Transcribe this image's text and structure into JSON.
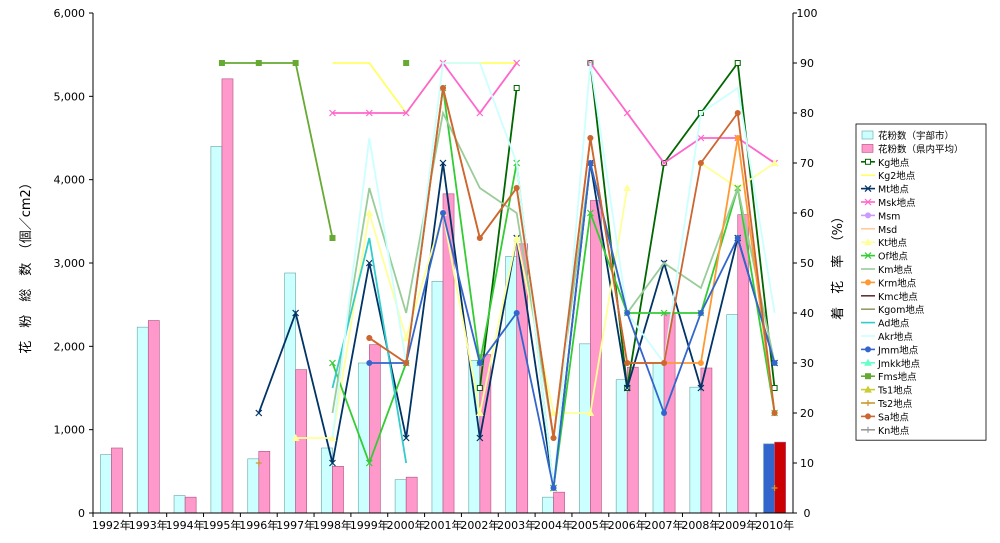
{
  "chart_data": {
    "type": "bar",
    "categories": [
      "1992年",
      "1993年",
      "1994年",
      "1995年",
      "1996年",
      "1997年",
      "1998年",
      "1999年",
      "2000年",
      "2001年",
      "2002年",
      "2003年",
      "2004年",
      "2005年",
      "2006年",
      "2007年",
      "2008年",
      "2009年",
      "2010年"
    ],
    "ylabel": "花　粉　総　数　（個／cm2）",
    "y2label": "着　花　率　（%）",
    "ylim": [
      0,
      6000
    ],
    "y2lim": [
      0,
      100
    ],
    "yticks": [
      "0",
      "1,000",
      "2,000",
      "3,000",
      "4,000",
      "5,000",
      "6,000"
    ],
    "y2ticks": [
      "0",
      "10",
      "20",
      "30",
      "40",
      "50",
      "60",
      "70",
      "80",
      "90",
      "100"
    ],
    "legend_position": "right",
    "bar_series": [
      {
        "name": "花粉数（宇部市）",
        "color": "#ccffff",
        "stroke": "#66a6a6",
        "values": [
          700,
          2230,
          210,
          4400,
          650,
          2880,
          780,
          1800,
          400,
          2780,
          1830,
          3080,
          190,
          2030,
          1600,
          1800,
          1510,
          2380,
          830
        ]
      },
      {
        "name": "花粉数（県内平均）",
        "color": "#ff99cc",
        "stroke": "#b05080",
        "values": [
          780,
          2310,
          190,
          5210,
          740,
          1720,
          560,
          2020,
          430,
          3830,
          1900,
          3230,
          250,
          3750,
          1750,
          2400,
          1740,
          3580,
          850
        ]
      }
    ],
    "line_series": [
      {
        "name": "Kg地点",
        "color": "#006600",
        "marker": "square",
        "values": [
          null,
          null,
          null,
          null,
          null,
          null,
          null,
          null,
          null,
          null,
          25,
          85,
          null,
          90,
          25,
          70,
          80,
          90,
          25
        ]
      },
      {
        "name": "Kg2地点",
        "color": "#ffff66",
        "marker": "none",
        "values": [
          null,
          null,
          null,
          null,
          null,
          null,
          90,
          90,
          80,
          90,
          90,
          90,
          null,
          null,
          null,
          null,
          null,
          null,
          null
        ]
      },
      {
        "name": "Mt地点",
        "color": "#003366",
        "marker": "x",
        "values": [
          null,
          null,
          null,
          null,
          20,
          40,
          10,
          50,
          15,
          70,
          15,
          55,
          5,
          70,
          25,
          50,
          25,
          55,
          30
        ]
      },
      {
        "name": "Msk地点",
        "color": "#ff66cc",
        "marker": "x",
        "values": [
          null,
          null,
          null,
          null,
          null,
          null,
          80,
          80,
          80,
          90,
          80,
          90,
          null,
          90,
          80,
          70,
          75,
          75,
          70
        ]
      },
      {
        "name": "Msm",
        "color": "#cc99ff",
        "marker": "circle",
        "values": [
          null,
          null,
          null,
          null,
          null,
          null,
          null,
          null,
          null,
          null,
          null,
          null,
          null,
          null,
          null,
          null,
          null,
          null,
          null
        ]
      },
      {
        "name": "Msd",
        "color": "#ffcc99",
        "marker": "none",
        "values": [
          null,
          null,
          null,
          null,
          null,
          null,
          null,
          null,
          null,
          null,
          null,
          null,
          null,
          null,
          null,
          null,
          null,
          null,
          null
        ]
      },
      {
        "name": "Kt地点",
        "color": "#ffff99",
        "marker": "triangle",
        "values": [
          null,
          null,
          null,
          null,
          null,
          15,
          15,
          60,
          35,
          60,
          20,
          55,
          20,
          20,
          65,
          null,
          70,
          65,
          70
        ]
      },
      {
        "name": "Of地点",
        "color": "#33cc33",
        "marker": "x",
        "values": [
          null,
          null,
          null,
          null,
          null,
          null,
          30,
          10,
          30,
          85,
          30,
          70,
          5,
          60,
          40,
          40,
          40,
          65,
          20
        ]
      },
      {
        "name": "Km地点",
        "color": "#99cc99",
        "marker": "none",
        "values": [
          null,
          null,
          null,
          null,
          null,
          null,
          20,
          65,
          40,
          80,
          65,
          60,
          15,
          70,
          40,
          50,
          45,
          65,
          30
        ]
      },
      {
        "name": "Krm地点",
        "color": "#ff9933",
        "marker": "circle",
        "values": [
          null,
          null,
          null,
          null,
          null,
          null,
          null,
          35,
          30,
          85,
          55,
          65,
          15,
          75,
          30,
          30,
          30,
          75,
          20
        ]
      },
      {
        "name": "Kmc地点",
        "color": "#663333",
        "marker": "none",
        "values": [
          null,
          null,
          null,
          null,
          null,
          null,
          null,
          null,
          null,
          null,
          null,
          null,
          null,
          null,
          null,
          null,
          null,
          null,
          null
        ]
      },
      {
        "name": "Kgom地点",
        "color": "#999966",
        "marker": "none",
        "values": [
          null,
          null,
          null,
          null,
          null,
          null,
          null,
          null,
          null,
          null,
          null,
          null,
          null,
          null,
          null,
          null,
          null,
          null,
          null
        ]
      },
      {
        "name": "Ad地点",
        "color": "#33cccc",
        "marker": "none",
        "values": [
          null,
          null,
          null,
          null,
          null,
          null,
          25,
          55,
          10,
          null,
          null,
          null,
          null,
          null,
          null,
          null,
          null,
          null,
          null
        ]
      },
      {
        "name": "Akr地点",
        "color": "#ccffff",
        "marker": "none",
        "values": [
          null,
          null,
          null,
          null,
          null,
          null,
          15,
          75,
          30,
          90,
          90,
          70,
          5,
          90,
          40,
          30,
          80,
          85,
          40
        ]
      },
      {
        "name": "Jmm地点",
        "color": "#3366cc",
        "marker": "circle",
        "values": [
          null,
          null,
          null,
          null,
          null,
          null,
          null,
          30,
          30,
          60,
          30,
          40,
          5,
          70,
          40,
          20,
          40,
          55,
          30
        ]
      },
      {
        "name": "Jmkk地点",
        "color": "#66ffcc",
        "marker": "triangle",
        "values": [
          null,
          null,
          null,
          null,
          null,
          null,
          null,
          null,
          null,
          null,
          null,
          null,
          null,
          null,
          null,
          null,
          null,
          null,
          null
        ]
      },
      {
        "name": "Fms地点",
        "color": "#66aa33",
        "marker": "square",
        "values": [
          null,
          null,
          null,
          90,
          90,
          90,
          55,
          null,
          90,
          null,
          null,
          null,
          null,
          null,
          null,
          null,
          null,
          null,
          null
        ]
      },
      {
        "name": "Ts1地点",
        "color": "#cccc33",
        "marker": "triangle",
        "values": [
          null,
          null,
          null,
          null,
          null,
          null,
          null,
          null,
          null,
          null,
          null,
          null,
          null,
          null,
          null,
          null,
          null,
          null,
          null
        ]
      },
      {
        "name": "Ts2地点",
        "color": "#cc9933",
        "marker": "plus",
        "values": [
          null,
          null,
          null,
          null,
          10,
          null,
          null,
          null,
          null,
          null,
          null,
          null,
          null,
          null,
          null,
          null,
          null,
          null,
          5
        ]
      },
      {
        "name": "Sa地点",
        "color": "#cc6633",
        "marker": "circle",
        "values": [
          null,
          null,
          null,
          null,
          null,
          null,
          null,
          35,
          30,
          85,
          55,
          65,
          15,
          75,
          30,
          30,
          70,
          80,
          20
        ]
      },
      {
        "name": "Kn地点",
        "color": "#999999",
        "marker": "plus",
        "values": [
          null,
          null,
          null,
          null,
          null,
          null,
          null,
          null,
          null,
          null,
          null,
          null,
          null,
          null,
          null,
          null,
          null,
          null,
          null
        ]
      }
    ]
  }
}
